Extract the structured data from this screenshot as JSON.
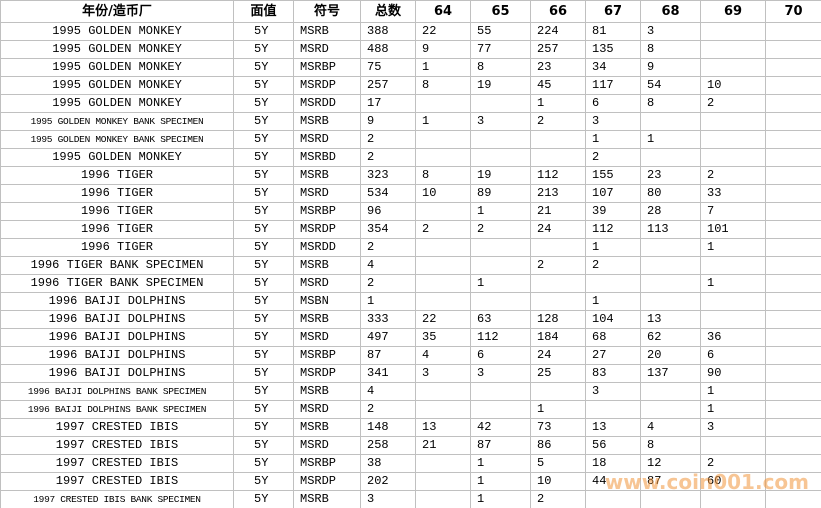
{
  "table": {
    "header": [
      "年份/造币厂",
      "面值",
      "符号",
      "总数",
      "64",
      "65",
      "66",
      "67",
      "68",
      "69",
      "70"
    ],
    "rows": [
      [
        "1995 GOLDEN MONKEY",
        "5Y",
        "MSRB",
        "388",
        "22",
        "55",
        "224",
        "81",
        "3",
        null,
        null
      ],
      [
        "1995 GOLDEN MONKEY",
        "5Y",
        "MSRD",
        "488",
        "9",
        "77",
        "257",
        "135",
        "8",
        null,
        null
      ],
      [
        "1995 GOLDEN MONKEY",
        "5Y",
        "MSRBP",
        "75",
        "1",
        "8",
        "23",
        "34",
        "9",
        null,
        null
      ],
      [
        "1995 GOLDEN MONKEY",
        "5Y",
        "MSRDP",
        "257",
        "8",
        "19",
        "45",
        "117",
        "54",
        "10",
        null
      ],
      [
        "1995 GOLDEN MONKEY",
        "5Y",
        "MSRDD",
        "17",
        null,
        null,
        "1",
        "6",
        "8",
        "2",
        null
      ],
      [
        "1995 GOLDEN MONKEY BANK SPECIMEN",
        "5Y",
        "MSRB",
        "9",
        "1",
        "3",
        "2",
        "3",
        null,
        null,
        null
      ],
      [
        "1995 GOLDEN MONKEY BANK SPECIMEN",
        "5Y",
        "MSRD",
        "2",
        null,
        null,
        null,
        "1",
        "1",
        null,
        null
      ],
      [
        "1995 GOLDEN MONKEY",
        "5Y",
        "MSRBD",
        "2",
        null,
        null,
        null,
        "2",
        null,
        null,
        null
      ],
      [
        "1996 TIGER",
        "5Y",
        "MSRB",
        "323",
        "8",
        "19",
        "112",
        "155",
        "23",
        "2",
        null
      ],
      [
        "1996 TIGER",
        "5Y",
        "MSRD",
        "534",
        "10",
        "89",
        "213",
        "107",
        "80",
        "33",
        null
      ],
      [
        "1996 TIGER",
        "5Y",
        "MSRBP",
        "96",
        null,
        "1",
        "21",
        "39",
        "28",
        "7",
        null
      ],
      [
        "1996 TIGER",
        "5Y",
        "MSRDP",
        "354",
        "2",
        "2",
        "24",
        "112",
        "113",
        "101",
        null
      ],
      [
        "1996 TIGER",
        "5Y",
        "MSRDD",
        "2",
        null,
        null,
        null,
        "1",
        null,
        "1",
        null
      ],
      [
        "1996 TIGER BANK SPECIMEN",
        "5Y",
        "MSRB",
        "4",
        null,
        null,
        "2",
        "2",
        null,
        null,
        null
      ],
      [
        "1996 TIGER BANK SPECIMEN",
        "5Y",
        "MSRD",
        "2",
        null,
        "1",
        null,
        null,
        null,
        "1",
        null
      ],
      [
        "1996 BAIJI DOLPHINS",
        "5Y",
        "MSBN",
        "1",
        null,
        null,
        null,
        "1",
        null,
        null,
        null
      ],
      [
        "1996 BAIJI DOLPHINS",
        "5Y",
        "MSRB",
        "333",
        "22",
        "63",
        "128",
        "104",
        "13",
        null,
        null
      ],
      [
        "1996 BAIJI DOLPHINS",
        "5Y",
        "MSRD",
        "497",
        "35",
        "112",
        "184",
        "68",
        "62",
        "36",
        null
      ],
      [
        "1996 BAIJI DOLPHINS",
        "5Y",
        "MSRBP",
        "87",
        "4",
        "6",
        "24",
        "27",
        "20",
        "6",
        null
      ],
      [
        "1996 BAIJI DOLPHINS",
        "5Y",
        "MSRDP",
        "341",
        "3",
        "3",
        "25",
        "83",
        "137",
        "90",
        null
      ],
      [
        "1996 BAIJI DOLPHINS BANK SPECIMEN",
        "5Y",
        "MSRB",
        "4",
        null,
        null,
        null,
        "3",
        null,
        "1",
        null
      ],
      [
        "1996 BAIJI DOLPHINS BANK SPECIMEN",
        "5Y",
        "MSRD",
        "2",
        null,
        null,
        "1",
        null,
        null,
        "1",
        null
      ],
      [
        "1997 CRESTED IBIS",
        "5Y",
        "MSRB",
        "148",
        "13",
        "42",
        "73",
        "13",
        "4",
        "3",
        null
      ],
      [
        "1997 CRESTED IBIS",
        "5Y",
        "MSRD",
        "258",
        "21",
        "87",
        "86",
        "56",
        "8",
        null,
        null
      ],
      [
        "1997 CRESTED IBIS",
        "5Y",
        "MSRBP",
        "38",
        null,
        "1",
        "5",
        "18",
        "12",
        "2",
        null
      ],
      [
        "1997 CRESTED IBIS",
        "5Y",
        "MSRDP",
        "202",
        null,
        "1",
        "10",
        "44",
        "87",
        "60",
        null
      ],
      [
        "1997 CRESTED IBIS BANK SPECIMEN",
        "5Y",
        "MSRB",
        "3",
        null,
        "1",
        "2",
        null,
        null,
        null,
        null
      ]
    ]
  },
  "watermark": "www.coin001.com"
}
